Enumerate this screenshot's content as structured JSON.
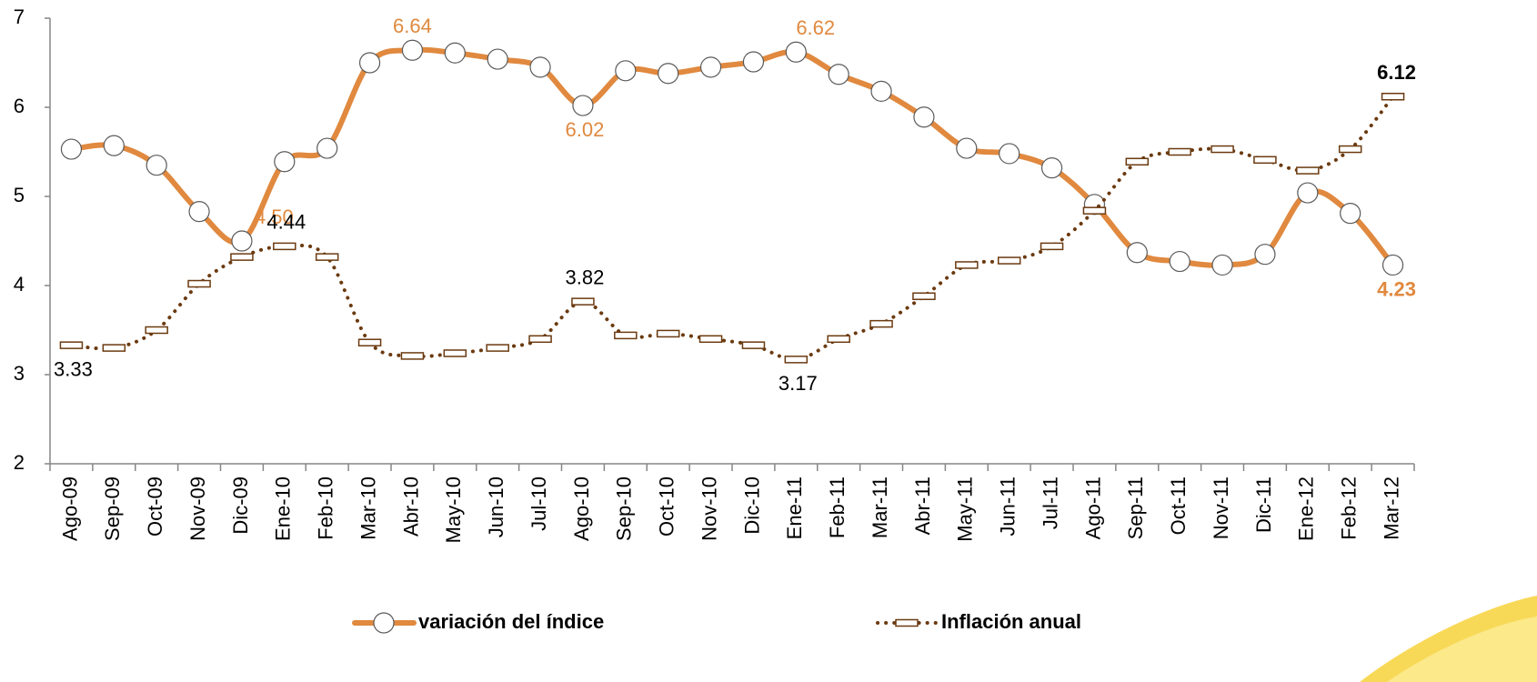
{
  "chart_data": {
    "type": "line",
    "categories": [
      "Ago-09",
      "Sep-09",
      "Oct-09",
      "Nov-09",
      "Dic-09",
      "Ene-10",
      "Feb-10",
      "Mar-10",
      "Abr-10",
      "May-10",
      "Jun-10",
      "Jul-10",
      "Ago-10",
      "Sep-10",
      "Oct-10",
      "Nov-10",
      "Dic-10",
      "Ene-11",
      "Feb-11",
      "Mar-11",
      "Abr-11",
      "May-11",
      "Jun-11",
      "Jul-11",
      "Ago-11",
      "Sep-11",
      "Oct-11",
      "Nov-11",
      "Dic-11",
      "Ene-12",
      "Feb-12",
      "Mar-12"
    ],
    "series": [
      {
        "name": "variación del índice",
        "color": "#e0893f",
        "marker": "circle",
        "values": [
          5.53,
          5.57,
          5.35,
          4.83,
          4.5,
          5.39,
          5.54,
          6.5,
          6.64,
          6.61,
          6.54,
          6.45,
          6.02,
          6.41,
          6.38,
          6.45,
          6.51,
          6.62,
          6.37,
          6.18,
          5.89,
          5.54,
          5.48,
          5.32,
          4.91,
          4.37,
          4.27,
          4.23,
          4.35,
          5.04,
          4.81,
          4.23
        ],
        "value_labels": [
          null,
          null,
          null,
          null,
          "4.50",
          null,
          null,
          null,
          "6.64",
          null,
          null,
          null,
          "6.02",
          null,
          null,
          null,
          null,
          "6.62",
          null,
          null,
          null,
          null,
          null,
          null,
          null,
          null,
          null,
          null,
          null,
          null,
          null,
          "4.23"
        ]
      },
      {
        "name": "Inflación anual",
        "color": "#6b3a10",
        "marker": "dash",
        "dotted": true,
        "values": [
          3.33,
          3.3,
          3.5,
          4.02,
          4.32,
          4.44,
          4.32,
          3.36,
          3.21,
          3.24,
          3.3,
          3.4,
          3.82,
          3.44,
          3.46,
          3.4,
          3.33,
          3.17,
          3.4,
          3.57,
          3.88,
          4.23,
          4.28,
          4.44,
          4.84,
          5.39,
          5.5,
          5.53,
          5.41,
          5.29,
          5.53,
          6.12
        ],
        "value_labels": [
          "3.33",
          null,
          null,
          null,
          null,
          "4.44",
          null,
          null,
          null,
          null,
          null,
          null,
          "3.82",
          null,
          null,
          null,
          null,
          "3.17",
          null,
          null,
          null,
          null,
          null,
          null,
          null,
          null,
          null,
          null,
          null,
          null,
          null,
          "6.12"
        ]
      }
    ],
    "ylim": [
      2,
      7
    ],
    "yticks": [
      2,
      3,
      4,
      5,
      6,
      7
    ],
    "legend": "bottom"
  }
}
